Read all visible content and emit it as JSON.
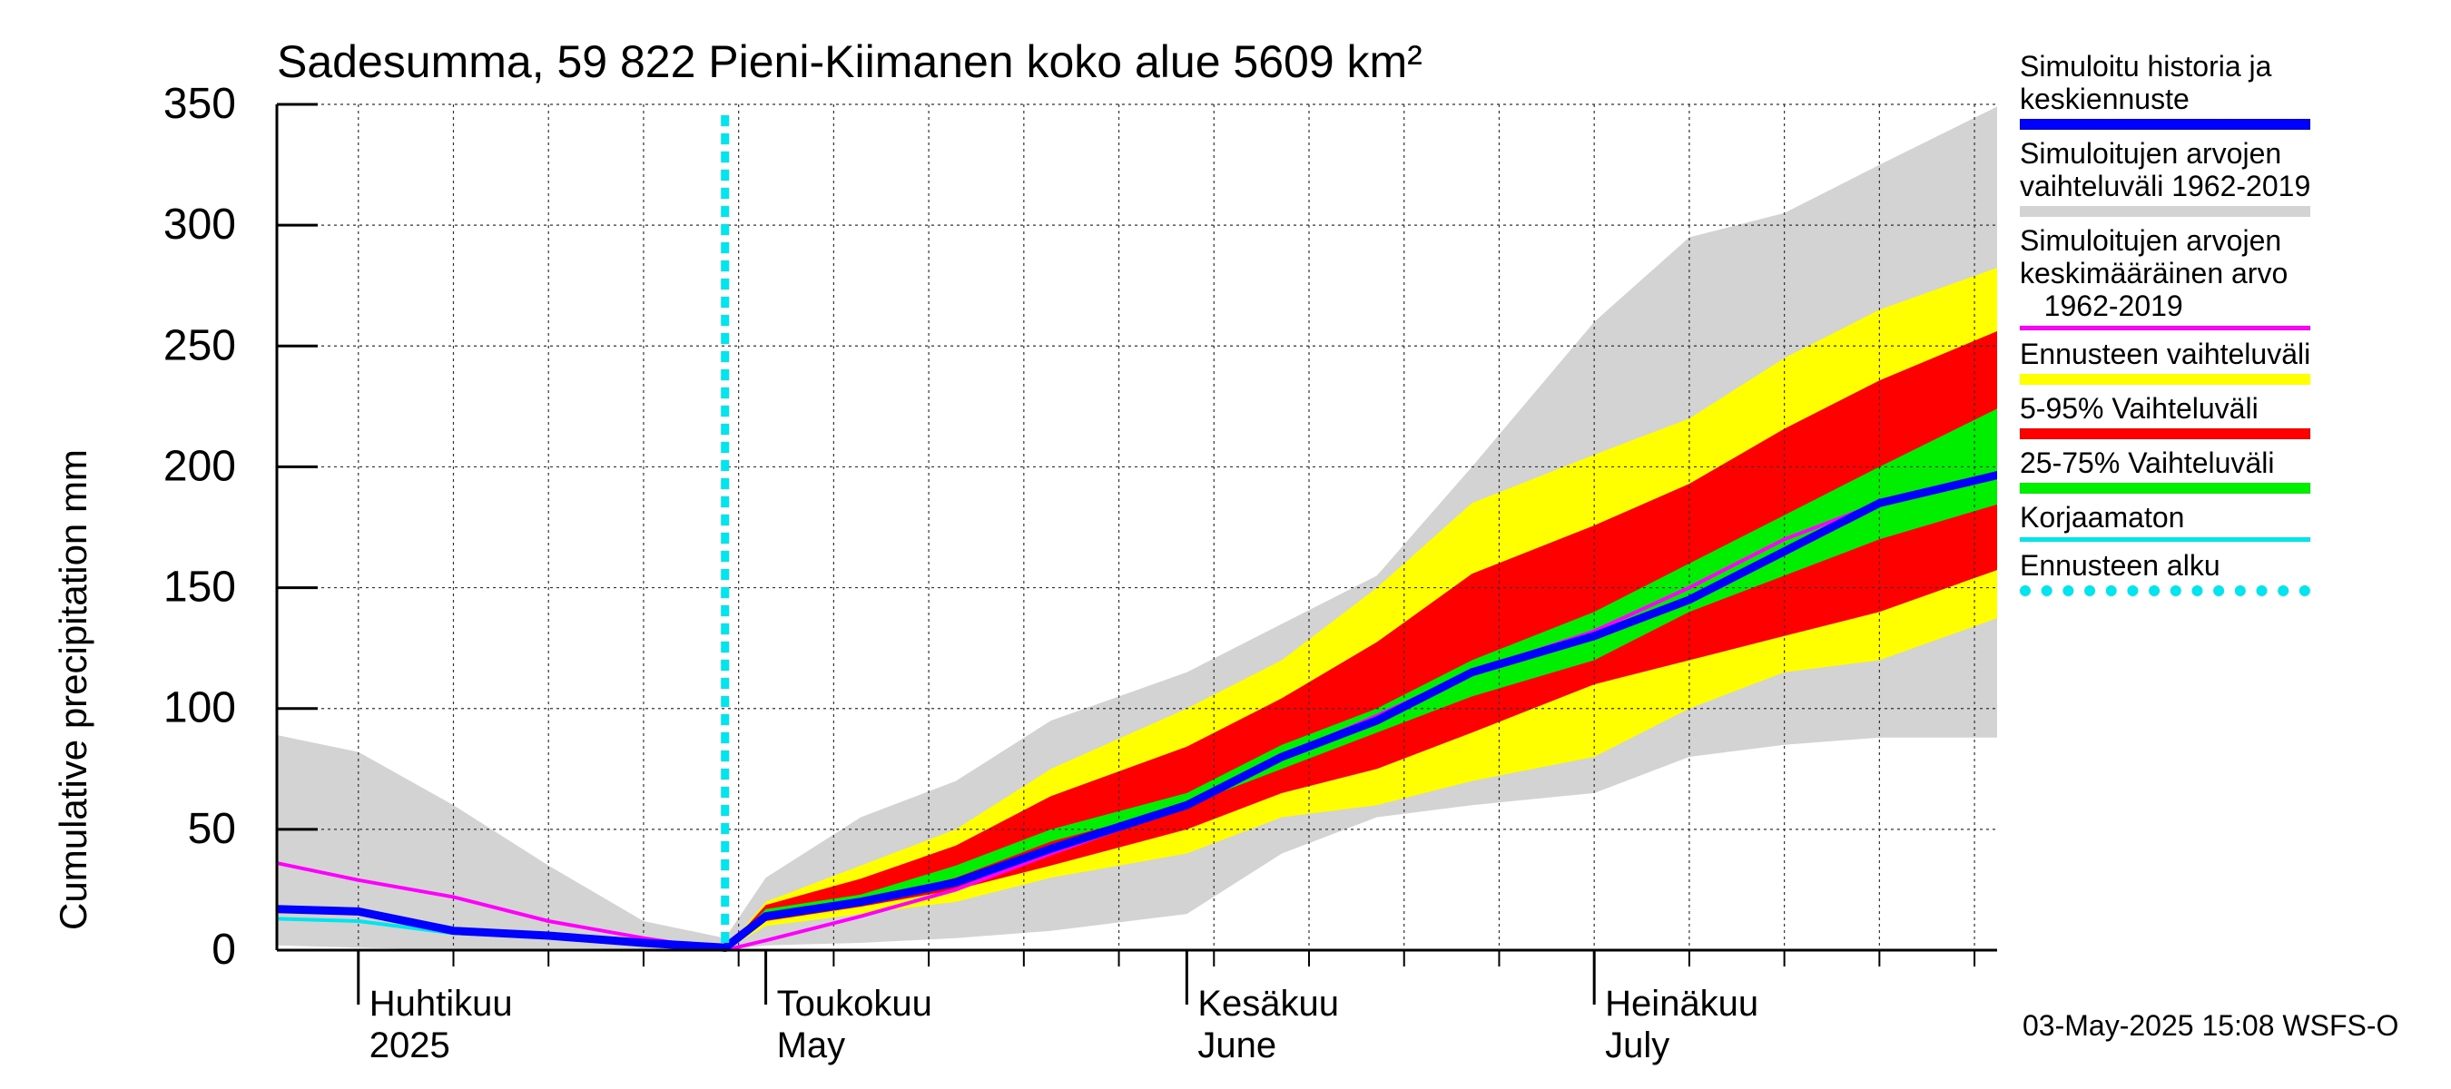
{
  "chart_data": {
    "type": "area",
    "title": "Sadesumma, 59 822 Pieni-Kiimanen koko alue 5609 km²",
    "ylabel": "Cumulative precipitation   mm",
    "ylim": [
      0,
      350
    ],
    "yticks": [
      0,
      50,
      100,
      150,
      200,
      250,
      300,
      350
    ],
    "xlim": [
      "2025-03-26",
      "2025-07-31"
    ],
    "grid": true,
    "legend_position": "right",
    "month_labels": [
      {
        "fi": "Huhtikuu",
        "en": "2025",
        "date": "2025-04-01"
      },
      {
        "fi": "Toukokuu",
        "en": "May",
        "date": "2025-05-01"
      },
      {
        "fi": "Kesäkuu",
        "en": "June",
        "date": "2025-06-01"
      },
      {
        "fi": "Heinäkuu",
        "en": "July",
        "date": "2025-07-01"
      }
    ],
    "forecast_start": "2025-04-28",
    "x": [
      "2025-03-26",
      "2025-04-01",
      "2025-04-08",
      "2025-04-15",
      "2025-04-22",
      "2025-04-28",
      "2025-05-01",
      "2025-05-08",
      "2025-05-15",
      "2025-05-22",
      "2025-06-01",
      "2025-06-08",
      "2025-06-15",
      "2025-06-22",
      "2025-07-01",
      "2025-07-08",
      "2025-07-15",
      "2025-07-22",
      "2025-07-31"
    ],
    "series": [
      {
        "name": "Simuloitujen arvojen vaihteluväli 1962-2019",
        "color": "#d3d3d3",
        "lower": [
          2,
          1,
          0,
          0,
          0,
          0,
          2,
          3,
          5,
          8,
          15,
          40,
          55,
          60,
          65,
          80,
          85,
          88,
          88
        ],
        "upper": [
          89,
          82,
          60,
          35,
          12,
          5,
          30,
          55,
          70,
          95,
          115,
          135,
          155,
          200,
          260,
          295,
          305,
          325,
          350
        ]
      },
      {
        "name": "Ennusteen vaihteluväli",
        "color": "#ffff00",
        "lower": [
          null,
          null,
          null,
          null,
          null,
          0,
          10,
          15,
          20,
          30,
          40,
          55,
          60,
          70,
          80,
          100,
          115,
          120,
          138
        ],
        "upper": [
          null,
          null,
          null,
          null,
          null,
          0,
          20,
          35,
          50,
          75,
          100,
          120,
          150,
          185,
          205,
          220,
          245,
          265,
          283
        ]
      },
      {
        "name": "5-95% Vaihteluväli",
        "color": "#ff0000",
        "lower": [
          null,
          null,
          null,
          null,
          null,
          0,
          12,
          18,
          25,
          35,
          50,
          65,
          75,
          90,
          110,
          120,
          130,
          140,
          158
        ]
      },
      {
        "name": "25-75% Vaihteluväli",
        "color": "#00ee00",
        "lower": [
          null,
          null,
          null,
          null,
          null,
          0,
          15,
          20,
          30,
          45,
          60,
          75,
          90,
          105,
          120,
          140,
          155,
          170,
          185
        ],
        "upper": [
          null,
          null,
          null,
          null,
          null,
          0,
          17,
          23,
          35,
          50,
          65,
          85,
          100,
          120,
          140,
          160,
          180,
          200,
          225
        ]
      },
      {
        "name": "Simuloitujen arvojen keskimääräinen arvo 1962-2019",
        "color": "#ff00ff",
        "values": [
          36,
          29,
          22,
          12,
          5,
          0,
          4,
          14,
          25,
          40,
          60,
          80,
          97,
          115,
          132,
          150,
          170,
          185,
          198
        ]
      },
      {
        "name": "Simuloitu historia ja keskiennuste",
        "color": "#0000ff",
        "values": [
          17,
          16,
          8,
          6,
          3,
          1,
          14,
          20,
          28,
          42,
          60,
          80,
          95,
          115,
          130,
          145,
          165,
          185,
          197
        ]
      },
      {
        "name": "Korjaamaton",
        "color": "#00e5ee",
        "values": [
          13,
          12,
          7,
          6,
          3,
          1,
          14,
          20,
          28,
          42,
          60,
          80,
          95,
          115,
          130,
          145,
          165,
          185,
          197
        ]
      }
    ]
  },
  "legend": [
    {
      "label": "Simuloitu historia ja\nkeskiennuste",
      "color": "#0000ff",
      "style": "thick"
    },
    {
      "label": "Simuloitujen arvojen\nvaihteluväli 1962-2019",
      "color": "#d3d3d3",
      "style": "thick"
    },
    {
      "label": "Simuloitujen arvojen\nkeskimääräinen arvo\n   1962-2019",
      "color": "#ff00ff",
      "style": "thin"
    },
    {
      "label": "Ennusteen vaihteluväli",
      "color": "#ffff00",
      "style": "thick"
    },
    {
      "label": "5-95% Vaihteluväli",
      "color": "#ff0000",
      "style": "thick"
    },
    {
      "label": "25-75% Vaihteluväli",
      "color": "#00ee00",
      "style": "thick"
    },
    {
      "label": "Korjaamaton",
      "color": "#00e5ee",
      "style": "thin"
    },
    {
      "label": "Ennusteen alku",
      "color": "#00e5ee",
      "style": "dotted"
    }
  ],
  "timestamp": "03-May-2025 15:08 WSFS-O"
}
